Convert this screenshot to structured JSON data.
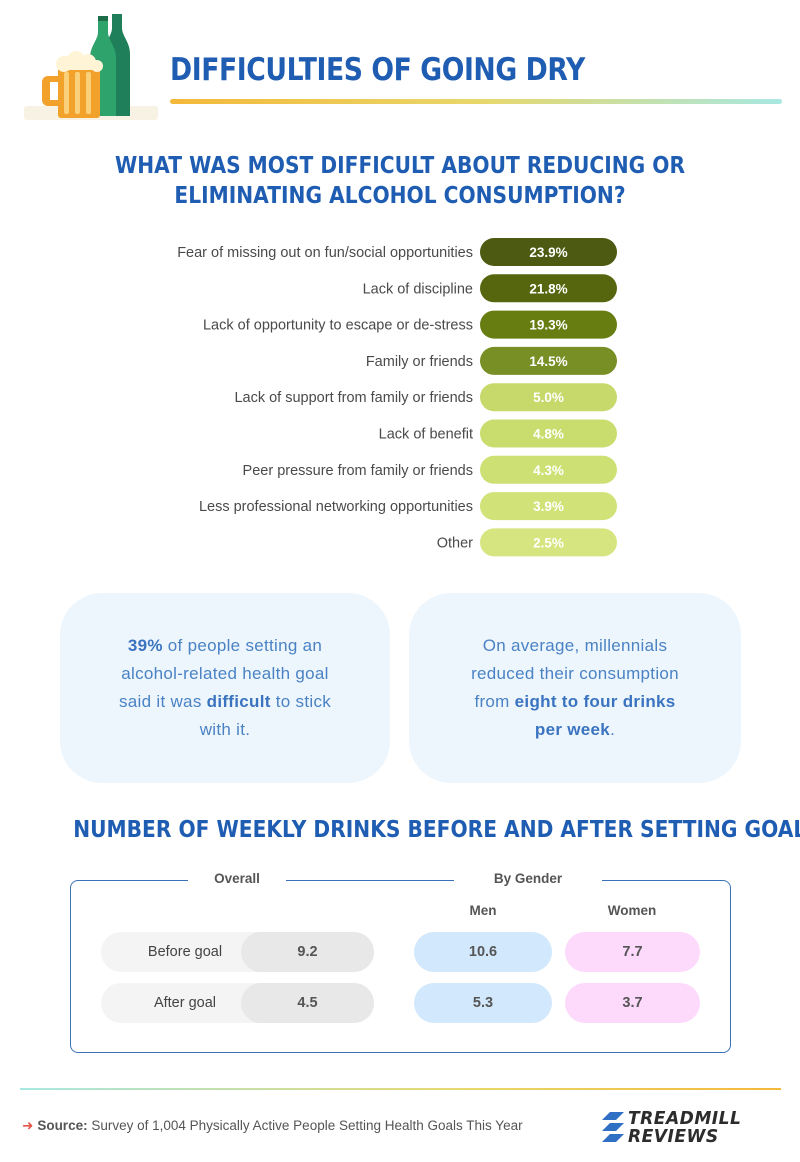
{
  "header": {
    "title": "DIFFICULTIES OF GOING DRY"
  },
  "chart_title": "WHAT WAS MOST DIFFICULT ABOUT REDUCING OR ELIMINATING ALCOHOL CONSUMPTION?",
  "chart_data": [
    {
      "type": "bar",
      "orientation": "horizontal",
      "title": "WHAT WAS MOST DIFFICULT ABOUT REDUCING OR ELIMINATING ALCOHOL CONSUMPTION?",
      "categories": [
        "Fear of missing out on fun/social opportunities",
        "Lack of discipline",
        "Lack of opportunity to escape or de-stress",
        "Family or friends",
        "Lack of support from family or friends",
        "Lack of benefit",
        "Peer pressure from family or friends",
        "Less professional networking opportunities",
        "Other"
      ],
      "values": [
        23.9,
        21.8,
        19.3,
        14.5,
        5.0,
        4.8,
        4.3,
        3.9,
        2.5
      ],
      "value_labels": [
        "23.9%",
        "21.8%",
        "19.3%",
        "14.5%",
        "5.0%",
        "4.8%",
        "4.3%",
        "3.9%",
        "2.5%"
      ],
      "colors": [
        "#4d5b12",
        "#55660f",
        "#677d12",
        "#788f26",
        "#c6d96a",
        "#c9dc6e",
        "#cde073",
        "#d0e278",
        "#d6e57f"
      ],
      "unit": "%"
    },
    {
      "type": "table",
      "title": "NUMBER OF WEEKLY DRINKS BEFORE AND AFTER SETTING GOAL",
      "columns": [
        "Overall",
        "Men",
        "Women"
      ],
      "rows": [
        {
          "label": "Before goal",
          "values": [
            9.2,
            10.6,
            7.7
          ]
        },
        {
          "label": "After goal",
          "values": [
            4.5,
            5.3,
            3.7
          ]
        }
      ]
    }
  ],
  "cards": {
    "left": {
      "highlight": "39%",
      "text1": " of people setting an alcohol-related health goal said it was ",
      "bold2": "difficult",
      "text2": " to stick with it."
    },
    "right": {
      "text1": "On average, millennials reduced their consumption from ",
      "bold": "eight to four drinks per week",
      "text2": "."
    }
  },
  "drinks": {
    "title": "NUMBER OF WEEKLY DRINKS BEFORE AND AFTER SETTING GOAL",
    "overall_label": "Overall",
    "gender_label": "By Gender",
    "men_label": "Men",
    "women_label": "Women",
    "rows": [
      {
        "label": "Before goal",
        "overall": "9.2",
        "men": "10.6",
        "women": "7.7"
      },
      {
        "label": "After goal",
        "overall": "4.5",
        "men": "5.3",
        "women": "3.7"
      }
    ]
  },
  "footer": {
    "source_label": "Source:",
    "source_text": " Survey of 1,004 Physically Active People Setting Health Goals This Year",
    "brand_line1": "TREADMILL",
    "brand_line2": "REVIEWS",
    "brand_color": "#2f6fc4"
  },
  "colors": {
    "accent": "#1f5db3",
    "card_bg": "#eef6fd",
    "card_text": "#4a82c4"
  }
}
